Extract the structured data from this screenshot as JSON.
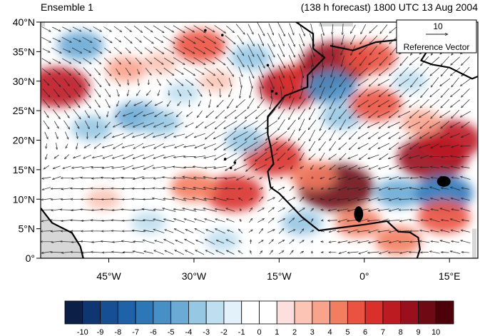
{
  "header": {
    "left_title": "Ensemble 1",
    "right_title": "(138 h forecast) 1800 UTC 13 Aug 2004"
  },
  "map": {
    "lon_range": [
      -57,
      20
    ],
    "lat_range": [
      0,
      40
    ],
    "lat_ticks": [
      {
        "value": 0,
        "label": "0°"
      },
      {
        "value": 5,
        "label": "5°N"
      },
      {
        "value": 10,
        "label": "10°N"
      },
      {
        "value": 15,
        "label": "15°N"
      },
      {
        "value": 20,
        "label": "20°N"
      },
      {
        "value": 25,
        "label": "25°N"
      },
      {
        "value": 30,
        "label": "30°N"
      },
      {
        "value": 35,
        "label": "35°N"
      },
      {
        "value": 40,
        "label": "40°N"
      }
    ],
    "lon_ticks": [
      {
        "value": -45,
        "label": "45°W"
      },
      {
        "value": -30,
        "label": "30°W"
      },
      {
        "value": -15,
        "label": "15°W"
      },
      {
        "value": 0,
        "label": "0°"
      },
      {
        "value": 15,
        "label": "15°E"
      }
    ],
    "reference_vector": {
      "magnitude": "10",
      "label": "Reference Vector"
    },
    "anomalies": [
      {
        "lon": -29,
        "lat": 36,
        "v": 5
      },
      {
        "lon": -54,
        "lat": 29,
        "v": 7
      },
      {
        "lon": -42,
        "lat": 32,
        "v": 3
      },
      {
        "lon": -36,
        "lat": 33,
        "v": 2
      },
      {
        "lon": -13,
        "lat": 29,
        "v": 7
      },
      {
        "lon": -10,
        "lat": 30,
        "v": 6
      },
      {
        "lon": -5,
        "lat": 33,
        "v": 8
      },
      {
        "lon": 1,
        "lat": 34,
        "v": 5
      },
      {
        "lon": -6,
        "lat": 29,
        "v": -5
      },
      {
        "lon": -4,
        "lat": 24,
        "v": -3
      },
      {
        "lon": 2,
        "lat": 26,
        "v": 5
      },
      {
        "lon": 12,
        "lat": 17,
        "v": 8
      },
      {
        "lon": 15,
        "lat": 20,
        "v": 7
      },
      {
        "lon": 10,
        "lat": 23,
        "v": 3
      },
      {
        "lon": -5,
        "lat": 12,
        "v": 9
      },
      {
        "lon": -9,
        "lat": 14,
        "v": 4
      },
      {
        "lon": -23,
        "lat": 11,
        "v": 6
      },
      {
        "lon": -30,
        "lat": 12,
        "v": 4
      },
      {
        "lon": -16,
        "lat": 17,
        "v": 6
      },
      {
        "lon": -40,
        "lat": 24,
        "v": -4
      },
      {
        "lon": -36,
        "lat": 23,
        "v": -3
      },
      {
        "lon": -48,
        "lat": 22,
        "v": -3
      },
      {
        "lon": -20,
        "lat": 34,
        "v": -3
      },
      {
        "lon": -50,
        "lat": 36,
        "v": -4
      },
      {
        "lon": -21,
        "lat": 20,
        "v": -3
      },
      {
        "lon": -11,
        "lat": 6,
        "v": -3
      },
      {
        "lon": 6,
        "lat": 11,
        "v": -4
      },
      {
        "lon": 14,
        "lat": 11,
        "v": -6
      },
      {
        "lon": -1,
        "lat": 6,
        "v": 4
      },
      {
        "lon": -38,
        "lat": 6,
        "v": -2
      },
      {
        "lon": -25,
        "lat": 3,
        "v": -2
      },
      {
        "lon": 14,
        "lat": 7,
        "v": 5
      },
      {
        "lon": 6,
        "lat": 3,
        "v": 4
      },
      {
        "lon": -46,
        "lat": 10,
        "v": 2
      },
      {
        "lon": -32,
        "lat": 28,
        "v": -2
      },
      {
        "lon": -26,
        "lat": 30,
        "v": 2
      },
      {
        "lon": 8,
        "lat": 30,
        "v": -2
      }
    ],
    "wind_field": [
      {
        "lon": -52,
        "lat": 36,
        "u": 4,
        "v": -2
      },
      {
        "lon": -30,
        "lat": 36,
        "u": 5,
        "v": -3
      },
      {
        "lon": -15,
        "lat": 33,
        "u": 3,
        "v": -6
      },
      {
        "lon": -40,
        "lat": 20,
        "u": -5,
        "v": -2
      },
      {
        "lon": -20,
        "lat": 20,
        "u": -6,
        "v": -4
      },
      {
        "lon": -10,
        "lat": 25,
        "u": -3,
        "v": -5
      },
      {
        "lon": 5,
        "lat": 25,
        "u": -5,
        "v": -3
      },
      {
        "lon": 10,
        "lat": 30,
        "u": -4,
        "v": -4
      },
      {
        "lon": -45,
        "lat": 10,
        "u": -6,
        "v": 0
      },
      {
        "lon": -30,
        "lat": 10,
        "u": -6,
        "v": 1
      },
      {
        "lon": -15,
        "lat": 8,
        "u": 3,
        "v": 2
      },
      {
        "lon": 0,
        "lat": 8,
        "u": -5,
        "v": -1
      },
      {
        "lon": 15,
        "lat": 10,
        "u": -4,
        "v": 1
      },
      {
        "lon": -30,
        "lat": 3,
        "u": -4,
        "v": 2
      },
      {
        "lon": -50,
        "lat": 28,
        "u": 3,
        "v": -4
      }
    ],
    "land": [
      [
        [
          -12,
          40
        ],
        [
          -9,
          38
        ],
        [
          -9,
          35.5
        ],
        [
          -7,
          34
        ],
        [
          -10,
          31
        ],
        [
          -10,
          29
        ],
        [
          -14,
          27.5
        ],
        [
          -17,
          24
        ],
        [
          -17,
          21
        ],
        [
          -16.5,
          19
        ],
        [
          -16,
          16
        ],
        [
          -17,
          14.7
        ],
        [
          -16.5,
          12
        ],
        [
          -15,
          11
        ],
        [
          -13,
          9
        ],
        [
          -11,
          7
        ],
        [
          -8,
          4.7
        ],
        [
          -4,
          5.2
        ],
        [
          0,
          5.7
        ],
        [
          4,
          6.3
        ],
        [
          6,
          4.5
        ],
        [
          8,
          4.4
        ],
        [
          9.5,
          3.5
        ],
        [
          9.8,
          1.5
        ],
        [
          9.3,
          0
        ],
        [
          20,
          0
        ],
        [
          20,
          40
        ]
      ]
    ],
    "coast_north": [
      [
        [
          -6,
          36
        ],
        [
          -2,
          35.2
        ],
        [
          2,
          36.6
        ],
        [
          6,
          37
        ],
        [
          10,
          37.3
        ],
        [
          11,
          35
        ],
        [
          10,
          33.5
        ],
        [
          12,
          32.8
        ],
        [
          15,
          32.3
        ],
        [
          19,
          30.4
        ],
        [
          20,
          30.8
        ]
      ]
    ],
    "south_america": [
      [
        [
          -57,
          8.5
        ],
        [
          -55,
          6
        ],
        [
          -51.5,
          4.3
        ],
        [
          -50,
          2
        ],
        [
          -49.5,
          0
        ],
        [
          -57,
          0
        ]
      ]
    ],
    "islands": [
      {
        "lon": -23.5,
        "lat": 15.3
      },
      {
        "lon": -24.5,
        "lat": 16.8
      },
      {
        "lon": -22.8,
        "lat": 16.2
      },
      {
        "lon": -16.2,
        "lat": 28.3
      },
      {
        "lon": -15.5,
        "lat": 27.9
      },
      {
        "lon": -17,
        "lat": 32.7
      },
      {
        "lon": -25,
        "lat": 37.8
      },
      {
        "lon": -28,
        "lat": 38.6
      }
    ],
    "lakes": [
      {
        "lon": 14,
        "lat": 13,
        "rx": 1.2,
        "ry": 0.9
      },
      {
        "lon": -1,
        "lat": 7.5,
        "rx": 0.8,
        "ry": 1.3
      }
    ]
  },
  "colorbar": {
    "labels": [
      "-10",
      "-9",
      "-8",
      "-7",
      "-6",
      "-5",
      "-4",
      "-3",
      "-2",
      "-1",
      "0",
      "1",
      "2",
      "3",
      "4",
      "5",
      "6",
      "7",
      "8",
      "9",
      "10"
    ],
    "colors": [
      "#0c1f47",
      "#0e3670",
      "#164f93",
      "#1e63a8",
      "#2b77b8",
      "#4690c6",
      "#6aaad5",
      "#96c7e3",
      "#bfdff0",
      "#e3f1fa",
      "#ffffff",
      "#ffffff",
      "#fde0dd",
      "#fbc4b5",
      "#f9a38c",
      "#f37d5f",
      "#eb5240",
      "#d9302b",
      "#bc1b22",
      "#990f1d",
      "#6f0a14",
      "#4e0008"
    ]
  }
}
